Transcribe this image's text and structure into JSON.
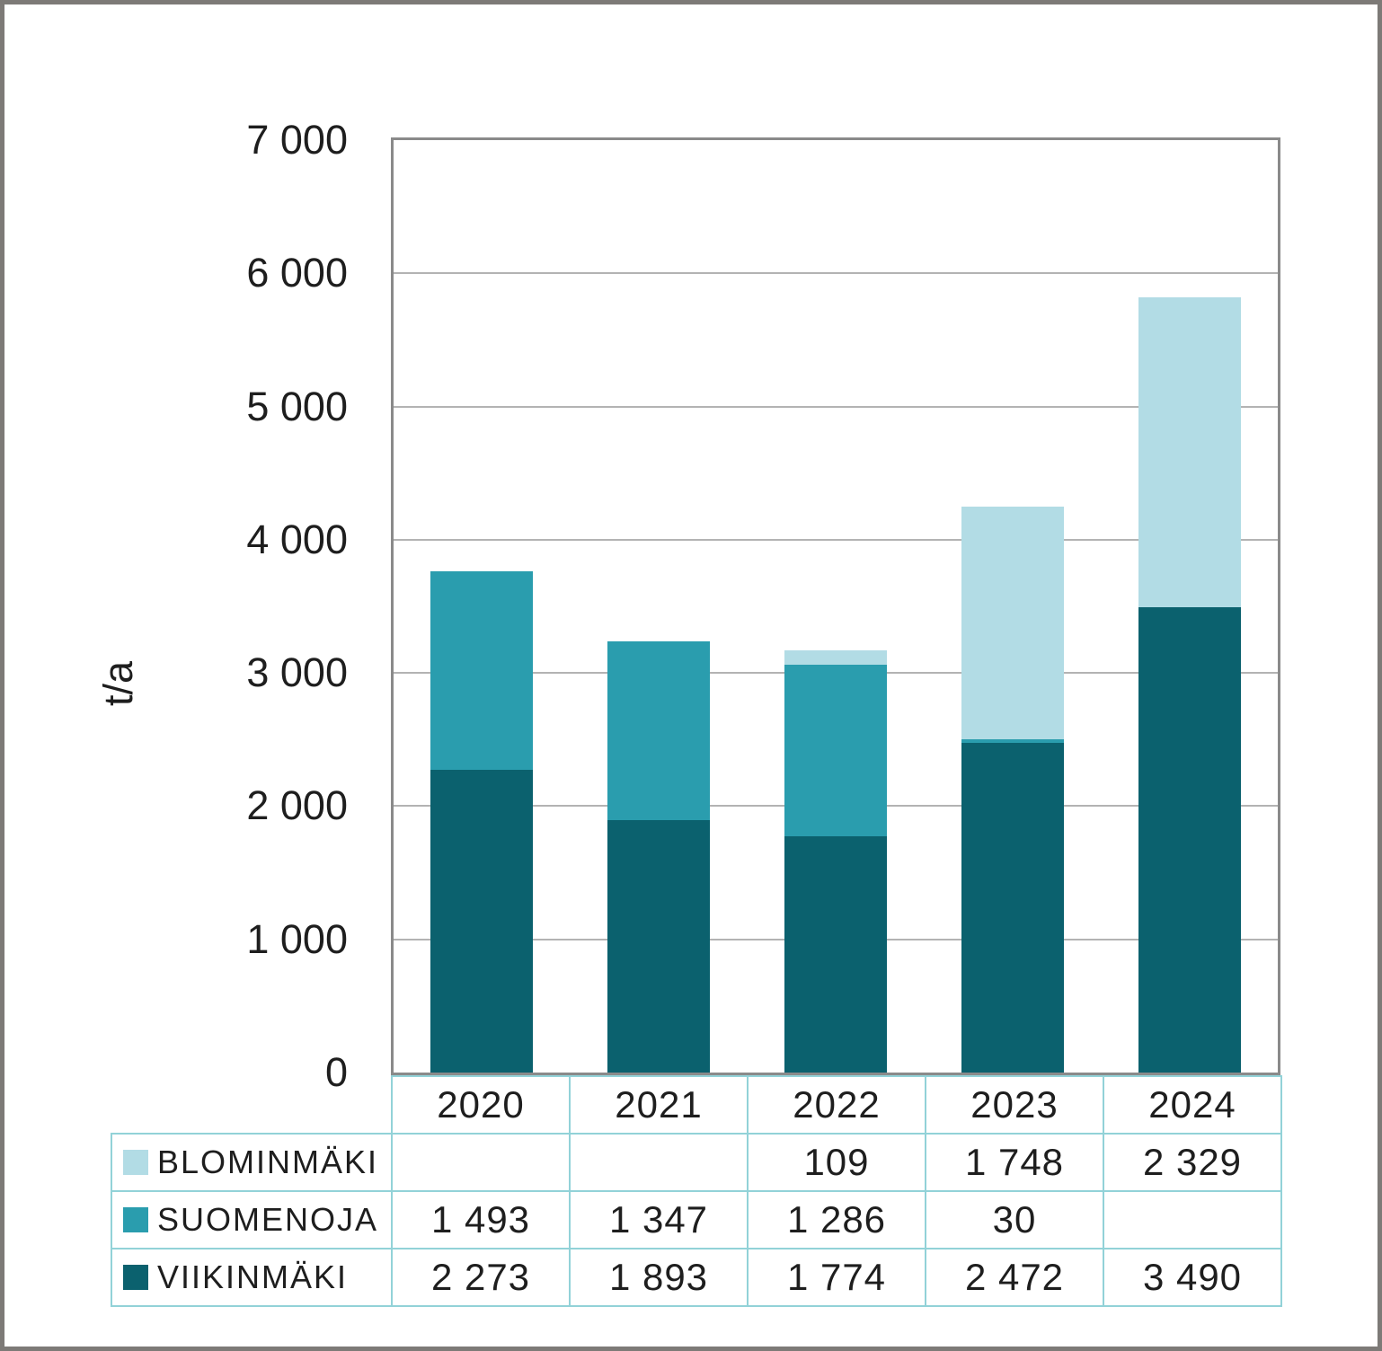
{
  "chart_data": {
    "type": "bar",
    "stacked": true,
    "title": "",
    "ylabel": "t/a",
    "xlabel": "",
    "ylim": [
      0,
      7000
    ],
    "ytick_interval": 1000,
    "yticks": [
      "0",
      "1 000",
      "2 000",
      "3 000",
      "4 000",
      "5 000",
      "6 000",
      "7 000"
    ],
    "grid": "horizontal",
    "legend_position": "table-rows-left-of-data-table",
    "categories": [
      "2020",
      "2021",
      "2022",
      "2023",
      "2024"
    ],
    "series": [
      {
        "name": "BLOMINMÄKI",
        "color": "#B2DCE5",
        "values": [
          null,
          null,
          109,
          1748,
          2329
        ],
        "labels": [
          "",
          "",
          "109",
          "1 748",
          "2 329"
        ]
      },
      {
        "name": "SUOMENOJA",
        "color": "#2A9DAE",
        "values": [
          1493,
          1347,
          1286,
          30,
          null
        ],
        "labels": [
          "1 493",
          "1 347",
          "1 286",
          "30",
          ""
        ]
      },
      {
        "name": "VIIKINMÄKI",
        "color": "#0B616E",
        "values": [
          2273,
          1893,
          1774,
          2472,
          3490
        ],
        "labels": [
          "2 273",
          "1 893",
          "1 774",
          "2 472",
          "3 490"
        ]
      }
    ],
    "stack_order_bottom_to_top": [
      "VIIKINMÄKI",
      "SUOMENOJA",
      "BLOMINMÄKI"
    ]
  },
  "style_colors": {
    "plot_border": "#8A8A8A",
    "gridline": "#B3B3B3",
    "table_border": "#92D2D8",
    "outer_frame": "#7D7A77",
    "text": "#1E1E1E"
  }
}
